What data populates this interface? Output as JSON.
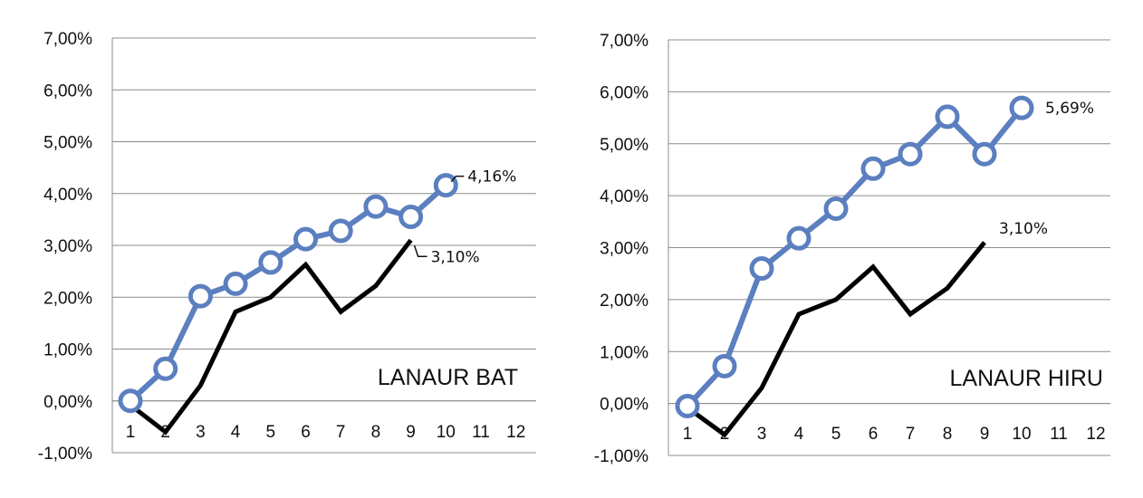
{
  "chart_data": [
    {
      "type": "line",
      "caption": "LANAUR BAT",
      "x": [
        1,
        2,
        3,
        4,
        5,
        6,
        7,
        8,
        9,
        10,
        11,
        12
      ],
      "x_tick_labels": [
        "1",
        "2",
        "3",
        "4",
        "5",
        "6",
        "7",
        "8",
        "9",
        "10",
        "11",
        "12"
      ],
      "ylim": [
        -1,
        7
      ],
      "y_ticks": [
        -1,
        0,
        1,
        2,
        3,
        4,
        5,
        6,
        7
      ],
      "y_tick_labels": [
        "-1,00%",
        "0,00%",
        "1,00%",
        "2,00%",
        "3,00%",
        "4,00%",
        "5,00%",
        "6,00%",
        "7,00%"
      ],
      "grid": true,
      "series": [
        {
          "color": "#5b7fbf",
          "marker": "circle",
          "x": [
            1,
            2,
            3,
            4,
            5,
            6,
            7,
            8,
            9,
            10
          ],
          "values": [
            0.0,
            0.62,
            2.02,
            2.26,
            2.67,
            3.12,
            3.28,
            3.75,
            3.55,
            4.16
          ],
          "end_label": "4,16%"
        },
        {
          "color": "#000000",
          "marker": "none",
          "x": [
            1,
            2,
            3,
            4,
            5,
            6,
            7,
            8,
            9
          ],
          "values": [
            -0.08,
            -0.6,
            0.3,
            1.72,
            2.0,
            2.63,
            1.72,
            2.22,
            3.1
          ],
          "end_label": "3,10%"
        }
      ]
    },
    {
      "type": "line",
      "caption": "LANAUR HIRU",
      "x": [
        1,
        2,
        3,
        4,
        5,
        6,
        7,
        8,
        9,
        10,
        11,
        12
      ],
      "x_tick_labels": [
        "1",
        "2",
        "3",
        "4",
        "5",
        "6",
        "7",
        "8",
        "9",
        "10",
        "11",
        "12"
      ],
      "ylim": [
        -1,
        7
      ],
      "y_ticks": [
        -1,
        0,
        1,
        2,
        3,
        4,
        5,
        6,
        7
      ],
      "y_tick_labels": [
        "-1,00%",
        "0,00%",
        "1,00%",
        "2,00%",
        "3,00%",
        "4,00%",
        "5,00%",
        "6,00%",
        "7,00%"
      ],
      "grid": true,
      "series": [
        {
          "color": "#5b7fbf",
          "marker": "circle",
          "x": [
            1,
            2,
            3,
            4,
            5,
            6,
            7,
            8,
            9,
            10
          ],
          "values": [
            -0.05,
            0.72,
            2.6,
            3.18,
            3.75,
            4.52,
            4.8,
            5.52,
            4.8,
            5.69
          ],
          "end_label": "5,69%"
        },
        {
          "color": "#000000",
          "marker": "none",
          "x": [
            1,
            2,
            3,
            4,
            5,
            6,
            7,
            8,
            9
          ],
          "values": [
            -0.08,
            -0.6,
            0.3,
            1.72,
            2.0,
            2.63,
            1.72,
            2.22,
            3.1
          ],
          "end_label": "3,10%"
        }
      ]
    }
  ]
}
